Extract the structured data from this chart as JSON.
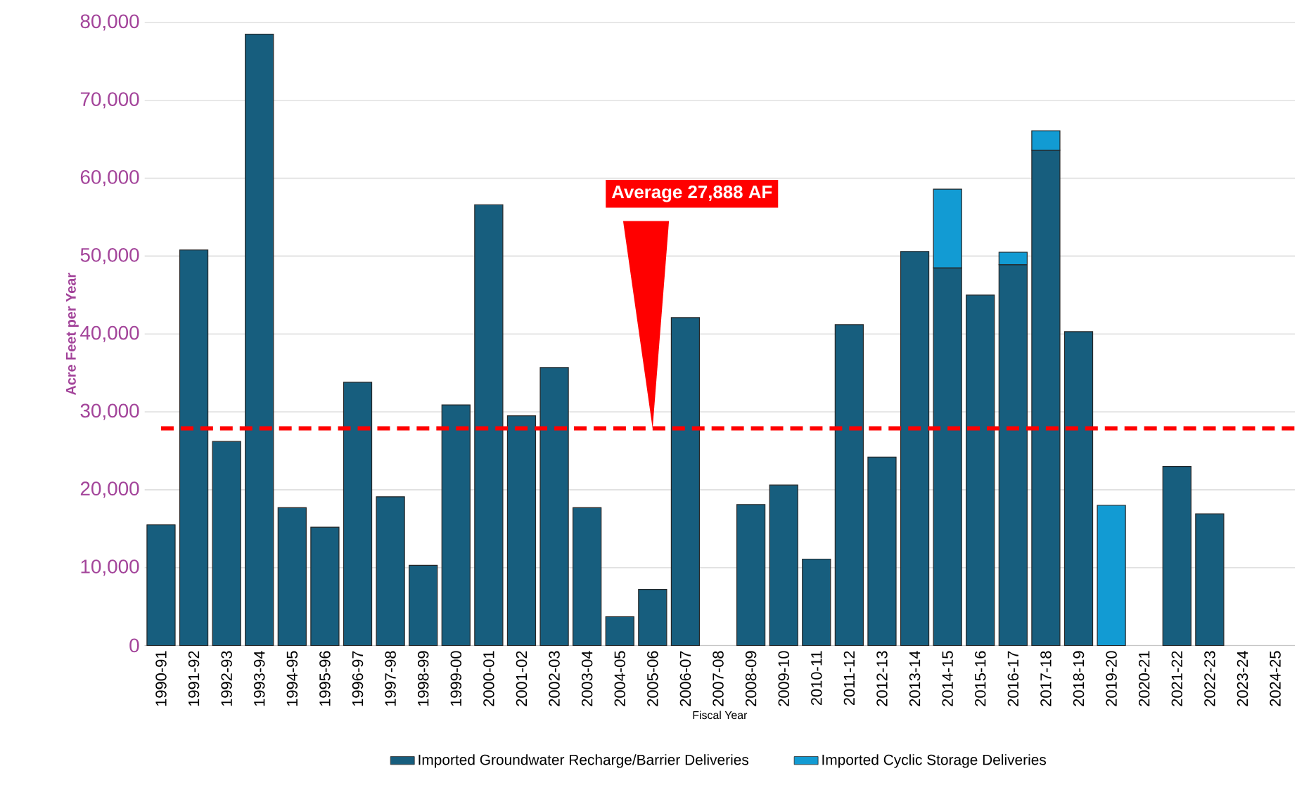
{
  "chart_data": {
    "type": "bar",
    "stacked": true,
    "xlabel": "Fiscal Year",
    "ylabel": "Acre Feet per Year",
    "categories": [
      "1990-91",
      "1991-92",
      "1992-93",
      "1993-94",
      "1994-95",
      "1995-96",
      "1996-97",
      "1997-98",
      "1998-99",
      "1999-00",
      "2000-01",
      "2001-02",
      "2002-03",
      "2003-04",
      "2004-05",
      "2005-06",
      "2006-07",
      "2007-08",
      "2008-09",
      "2009-10",
      "2010-11",
      "2011-12",
      "2012-13",
      "2013-14",
      "2014-15",
      "2015-16",
      "2016-17",
      "2017-18",
      "2018-19",
      "2019-20",
      "2020-21",
      "2021-22",
      "2022-23",
      "2023-24",
      "2024-25"
    ],
    "series": [
      {
        "name": "Imported Groundwater Recharge/Barrier Deliveries",
        "color": "#175e7e",
        "values": [
          15500,
          50800,
          26200,
          78500,
          17700,
          15200,
          33800,
          19100,
          10300,
          30900,
          56600,
          29500,
          35700,
          17700,
          3700,
          7200,
          42100,
          null,
          18100,
          20600,
          11100,
          41200,
          24200,
          50600,
          48500,
          45000,
          48900,
          63600,
          40300,
          null,
          null,
          23000,
          16900,
          null,
          null
        ]
      },
      {
        "name": "Imported Cyclic Storage Deliveries",
        "color": "#129bd3",
        "values": [
          null,
          null,
          null,
          null,
          null,
          null,
          null,
          null,
          null,
          null,
          null,
          null,
          null,
          null,
          null,
          null,
          null,
          null,
          null,
          null,
          null,
          null,
          null,
          null,
          10100,
          null,
          1600,
          2500,
          null,
          18000,
          null,
          null,
          null,
          null,
          null
        ]
      }
    ],
    "ylim": [
      0,
      80000
    ],
    "yticks": [
      {
        "value": 0,
        "label": "0"
      },
      {
        "value": 10000,
        "label": "10,000"
      },
      {
        "value": 20000,
        "label": "20,000"
      },
      {
        "value": 30000,
        "label": "30,000"
      },
      {
        "value": 40000,
        "label": "40,000"
      },
      {
        "value": 50000,
        "label": "50,000"
      },
      {
        "value": 60000,
        "label": "60,000"
      },
      {
        "value": 70000,
        "label": "70,000"
      },
      {
        "value": 80000,
        "label": "80,000"
      }
    ],
    "ref_lines": [
      {
        "axis": "y",
        "value": 27888,
        "label": "Average 27,888 AF",
        "color": "#ff0000",
        "line_style": "dashed"
      }
    ],
    "grid": "y",
    "legend": "bottom"
  }
}
